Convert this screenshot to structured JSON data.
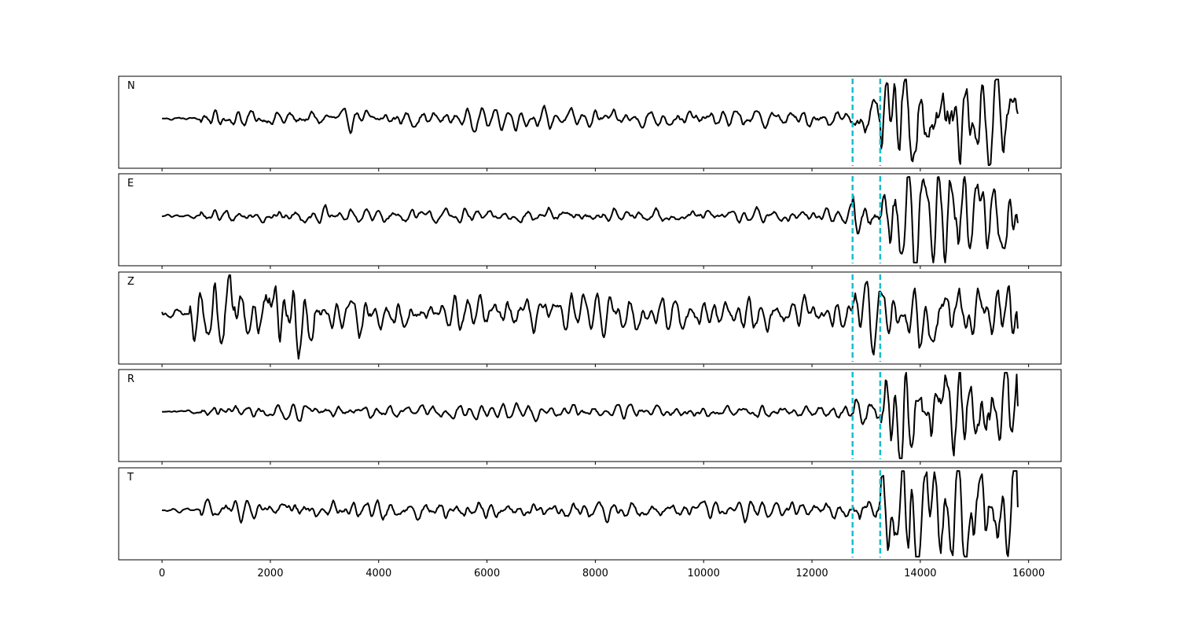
{
  "chart_data": {
    "type": "line",
    "x_range": [
      0,
      15800
    ],
    "xlim": [
      -800,
      16600
    ],
    "x_ticks": [
      0,
      2000,
      4000,
      6000,
      8000,
      10000,
      12000,
      14000,
      16000
    ],
    "x_tick_labels": [
      "0",
      "2000",
      "4000",
      "6000",
      "8000",
      "10000",
      "12000",
      "14000",
      "16000"
    ],
    "y_ticks_shown": false,
    "vlines": [
      12750,
      13260
    ],
    "colors": {
      "trace": "#000000",
      "vline": "#17becf",
      "axes": "#000000"
    },
    "series": [
      {
        "name": "N",
        "segments": [
          {
            "x0": 0,
            "x1": 700,
            "amp": 0.03
          },
          {
            "x0": 700,
            "x1": 12750,
            "amp": 0.14
          },
          {
            "x0": 12750,
            "x1": 13260,
            "amp": 0.3
          },
          {
            "x0": 13260,
            "x1": 15800,
            "amp": 0.78
          }
        ],
        "start": 0.0,
        "end": 0.1
      },
      {
        "name": "E",
        "segments": [
          {
            "x0": 0,
            "x1": 700,
            "amp": 0.03
          },
          {
            "x0": 700,
            "x1": 12750,
            "amp": 0.12
          },
          {
            "x0": 12750,
            "x1": 13260,
            "amp": 0.25
          },
          {
            "x0": 13260,
            "x1": 15800,
            "amp": 0.72
          }
        ],
        "start": 0.0,
        "end": -0.15
      },
      {
        "name": "Z",
        "segments": [
          {
            "x0": 0,
            "x1": 500,
            "amp": 0.1
          },
          {
            "x0": 500,
            "x1": 2800,
            "amp": 0.6
          },
          {
            "x0": 2800,
            "x1": 12750,
            "amp": 0.25
          },
          {
            "x0": 12750,
            "x1": 15800,
            "amp": 0.45
          }
        ],
        "start": 0.05,
        "end": -0.3
      },
      {
        "name": "R",
        "segments": [
          {
            "x0": 0,
            "x1": 700,
            "amp": 0.03
          },
          {
            "x0": 700,
            "x1": 12750,
            "amp": 0.11
          },
          {
            "x0": 12750,
            "x1": 13260,
            "amp": 0.25
          },
          {
            "x0": 13260,
            "x1": 15800,
            "amp": 0.72
          }
        ],
        "start": 0.0,
        "end": 0.12
      },
      {
        "name": "T",
        "segments": [
          {
            "x0": 0,
            "x1": 700,
            "amp": 0.03
          },
          {
            "x0": 700,
            "x1": 12750,
            "amp": 0.15
          },
          {
            "x0": 12750,
            "x1": 13260,
            "amp": 0.3
          },
          {
            "x0": 13260,
            "x1": 15800,
            "amp": 0.8
          }
        ],
        "start": 0.0,
        "end": 0.06
      }
    ]
  }
}
